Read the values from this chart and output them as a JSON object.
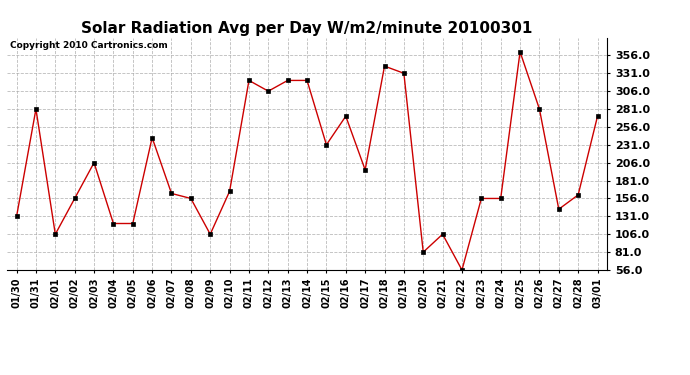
{
  "title": "Solar Radiation Avg per Day W/m2/minute 20100301",
  "copyright_text": "Copyright 2010 Cartronics.com",
  "dates": [
    "01/30",
    "01/31",
    "02/01",
    "02/02",
    "02/03",
    "02/04",
    "02/05",
    "02/06",
    "02/07",
    "02/08",
    "02/09",
    "02/10",
    "02/11",
    "02/12",
    "02/13",
    "02/14",
    "02/15",
    "02/16",
    "02/17",
    "02/18",
    "02/19",
    "02/20",
    "02/21",
    "02/22",
    "02/23",
    "02/24",
    "02/25",
    "02/26",
    "02/27",
    "02/28",
    "03/01"
  ],
  "values": [
    131,
    281,
    106,
    156,
    206,
    121,
    121,
    241,
    163,
    156,
    106,
    166,
    321,
    306,
    321,
    321,
    231,
    271,
    196,
    341,
    331,
    81,
    106,
    56,
    156,
    156,
    361,
    281,
    141,
    161,
    271
  ],
  "line_color": "#cc0000",
  "marker_color": "#000000",
  "bg_color": "#ffffff",
  "grid_color": "#aaaaaa",
  "ylim_min": 56.0,
  "ylim_max": 381.0,
  "yticks": [
    56.0,
    81.0,
    106.0,
    131.0,
    156.0,
    181.0,
    206.0,
    231.0,
    256.0,
    281.0,
    306.0,
    331.0,
    356.0
  ],
  "title_fontsize": 11,
  "copyright_fontsize": 6.5,
  "tick_fontsize": 7,
  "ytick_fontsize": 8
}
